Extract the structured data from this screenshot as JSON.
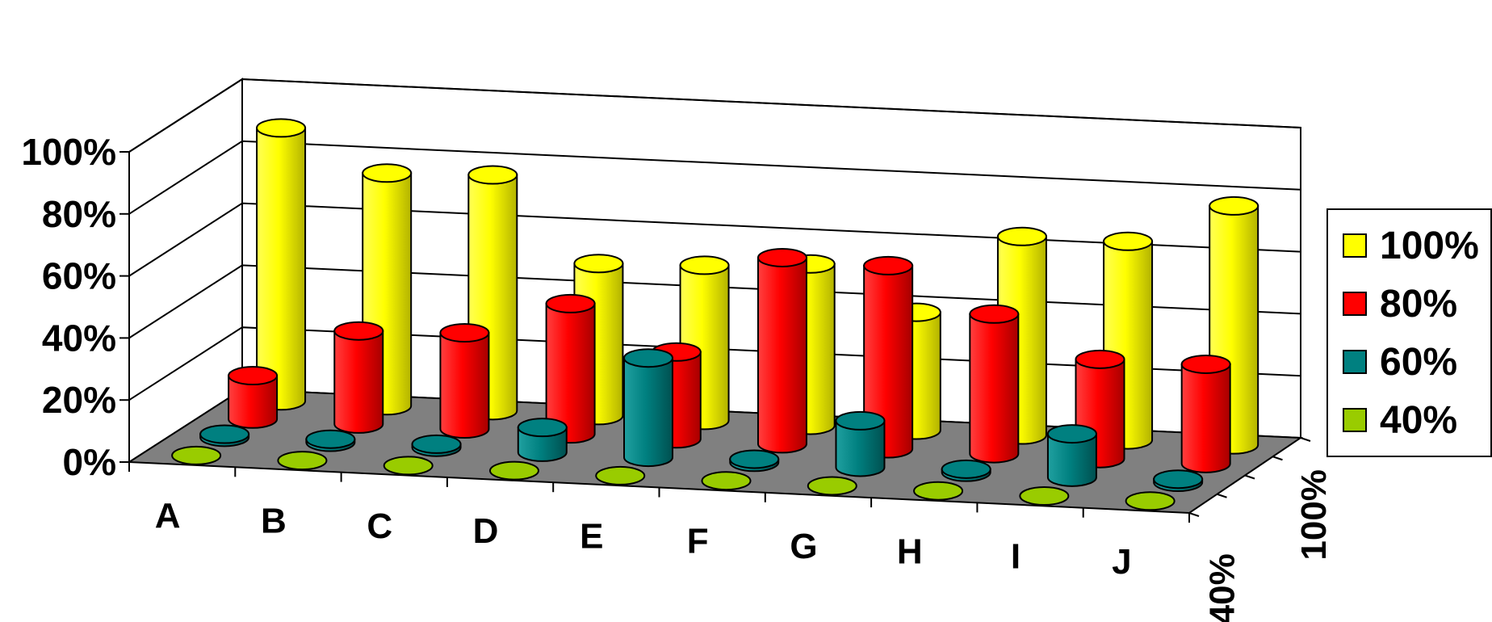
{
  "chart_data": {
    "type": "bar",
    "variant": "3d-cylinder",
    "title": "",
    "xlabel": "",
    "ylabel": "",
    "categories": [
      "A",
      "B",
      "C",
      "D",
      "E",
      "F",
      "G",
      "H",
      "I",
      "J"
    ],
    "y_ticks": [
      "0%",
      "20%",
      "40%",
      "60%",
      "80%",
      "100%"
    ],
    "depth_ticks": [
      "40%",
      "100%"
    ],
    "ylim": [
      0,
      100
    ],
    "grid": true,
    "legend_position": "right",
    "series": [
      {
        "name": "100%",
        "color": "#ffff00",
        "values": [
          88,
          75,
          76,
          49,
          50,
          52,
          38,
          64,
          64,
          77
        ]
      },
      {
        "name": "80%",
        "color": "#ff0000",
        "values": [
          14,
          30,
          31,
          42,
          28,
          60,
          59,
          45,
          32,
          32
        ]
      },
      {
        "name": "60%",
        "color": "#008080",
        "values": [
          1,
          1,
          1,
          8,
          32,
          1,
          15,
          1,
          14,
          1
        ]
      },
      {
        "name": "40%",
        "color": "#99cc00",
        "values": [
          0,
          0,
          0,
          0,
          0,
          0,
          0,
          0,
          0,
          0
        ]
      }
    ]
  }
}
